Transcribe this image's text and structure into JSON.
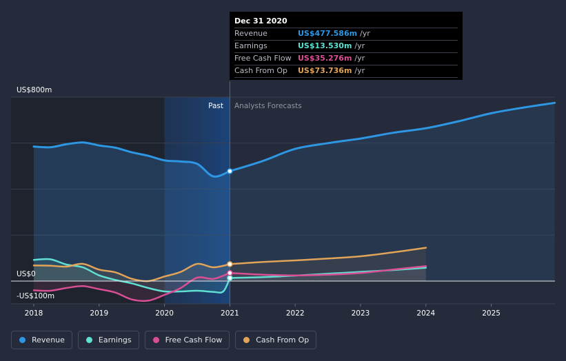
{
  "chart_data": {
    "type": "line",
    "title": "",
    "xlabel": "",
    "ylabel": "",
    "y_axis_labels": {
      "top": "US$800m",
      "zero": "US$0",
      "bottom": "-US$100m"
    },
    "ylim": [
      -100,
      800
    ],
    "xlim": [
      2017.82,
      2025.97
    ],
    "x_ticks": [
      2018,
      2019,
      2020,
      2021,
      2022,
      2023,
      2024,
      2025
    ],
    "x_tick_labels": [
      "2018",
      "2019",
      "2020",
      "2021",
      "2022",
      "2023",
      "2024",
      "2025"
    ],
    "past_label": "Past",
    "forecast_label": "Analysts Forecasts",
    "divider_x": 2021.0,
    "past_region_start": 2020.0,
    "series": [
      {
        "name": "Revenue",
        "color": "#2e97e4",
        "fill": true,
        "past": [
          [
            2018.0,
            585
          ],
          [
            2018.25,
            582
          ],
          [
            2018.5,
            595
          ],
          [
            2018.75,
            603
          ],
          [
            2019.0,
            590
          ],
          [
            2019.25,
            580
          ],
          [
            2019.5,
            560
          ],
          [
            2019.75,
            545
          ],
          [
            2020.0,
            525
          ],
          [
            2020.25,
            520
          ],
          [
            2020.5,
            510
          ],
          [
            2020.75,
            455
          ],
          [
            2021.0,
            478
          ]
        ],
        "forecast": [
          [
            2021.0,
            478
          ],
          [
            2021.5,
            522
          ],
          [
            2022.0,
            575
          ],
          [
            2022.5,
            600
          ],
          [
            2023.0,
            620
          ],
          [
            2023.5,
            645
          ],
          [
            2024.0,
            665
          ],
          [
            2024.5,
            695
          ],
          [
            2025.0,
            730
          ],
          [
            2025.5,
            755
          ],
          [
            2025.97,
            775
          ]
        ]
      },
      {
        "name": "Earnings",
        "color": "#5fe0d2",
        "fill": false,
        "past": [
          [
            2018.0,
            92
          ],
          [
            2018.25,
            95
          ],
          [
            2018.5,
            72
          ],
          [
            2018.75,
            60
          ],
          [
            2019.0,
            25
          ],
          [
            2019.25,
            5
          ],
          [
            2019.5,
            -10
          ],
          [
            2019.75,
            -30
          ],
          [
            2020.0,
            -45
          ],
          [
            2020.25,
            -45
          ],
          [
            2020.5,
            -42
          ],
          [
            2020.75,
            -47
          ],
          [
            2020.9,
            -45
          ],
          [
            2021.0,
            13.5
          ]
        ],
        "forecast": [
          [
            2021.0,
            13.5
          ],
          [
            2021.5,
            17
          ],
          [
            2022.0,
            24
          ],
          [
            2022.5,
            32
          ],
          [
            2023.0,
            40
          ],
          [
            2023.5,
            48
          ],
          [
            2024.0,
            58
          ]
        ]
      },
      {
        "name": "Free Cash Flow",
        "color": "#d94f94",
        "fill": false,
        "past": [
          [
            2018.0,
            -40
          ],
          [
            2018.25,
            -42
          ],
          [
            2018.5,
            -30
          ],
          [
            2018.75,
            -22
          ],
          [
            2019.0,
            -35
          ],
          [
            2019.25,
            -50
          ],
          [
            2019.5,
            -80
          ],
          [
            2019.75,
            -85
          ],
          [
            2020.0,
            -60
          ],
          [
            2020.25,
            -30
          ],
          [
            2020.5,
            15
          ],
          [
            2020.75,
            10
          ],
          [
            2021.0,
            35.3
          ]
        ],
        "forecast": [
          [
            2021.0,
            35.3
          ],
          [
            2021.5,
            28
          ],
          [
            2022.0,
            25
          ],
          [
            2022.5,
            28
          ],
          [
            2023.0,
            35
          ],
          [
            2023.5,
            50
          ],
          [
            2024.0,
            65
          ]
        ]
      },
      {
        "name": "Cash From Op",
        "color": "#e2a458",
        "fill": false,
        "past": [
          [
            2018.0,
            68
          ],
          [
            2018.25,
            67
          ],
          [
            2018.5,
            63
          ],
          [
            2018.75,
            75
          ],
          [
            2019.0,
            50
          ],
          [
            2019.25,
            38
          ],
          [
            2019.5,
            10
          ],
          [
            2019.75,
            0
          ],
          [
            2020.0,
            20
          ],
          [
            2020.25,
            40
          ],
          [
            2020.5,
            75
          ],
          [
            2020.75,
            60
          ],
          [
            2021.0,
            73.7
          ]
        ],
        "forecast": [
          [
            2021.0,
            73.7
          ],
          [
            2021.5,
            83
          ],
          [
            2022.0,
            90
          ],
          [
            2022.5,
            98
          ],
          [
            2023.0,
            108
          ],
          [
            2023.5,
            125
          ],
          [
            2024.0,
            145
          ]
        ]
      }
    ]
  },
  "tooltip": {
    "date": "Dec 31 2020",
    "rows": [
      {
        "name": "Revenue",
        "value": "US$477.586m",
        "unit": "/yr",
        "color": "#2e97e4"
      },
      {
        "name": "Earnings",
        "value": "US$13.530m",
        "unit": "/yr",
        "color": "#5fe0d2"
      },
      {
        "name": "Free Cash Flow",
        "value": "US$35.276m",
        "unit": "/yr",
        "color": "#d94f94"
      },
      {
        "name": "Cash From Op",
        "value": "US$73.736m",
        "unit": "/yr",
        "color": "#e2a458"
      }
    ]
  },
  "legend": [
    {
      "label": "Revenue",
      "color": "#2e97e4"
    },
    {
      "label": "Earnings",
      "color": "#5fe0d2"
    },
    {
      "label": "Free Cash Flow",
      "color": "#d94f94"
    },
    {
      "label": "Cash From Op",
      "color": "#e2a458"
    }
  ]
}
